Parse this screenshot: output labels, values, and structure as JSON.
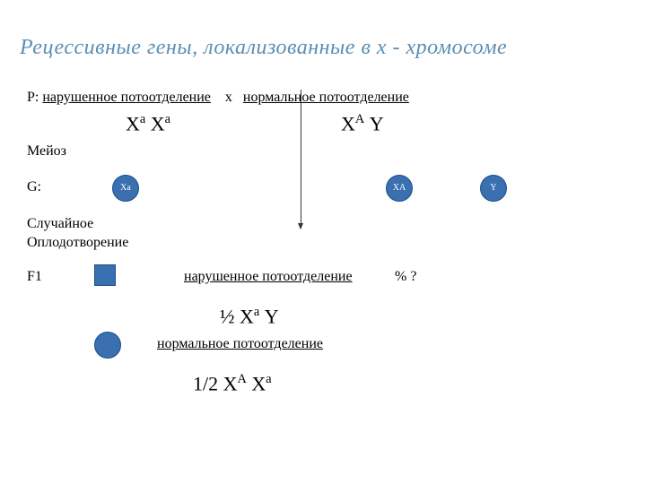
{
  "title": {
    "text": "Рецессивные  гены, локализованные в х - хромосоме",
    "color": "#5a8fb5"
  },
  "p_line": {
    "prefix": "P: ",
    "mother_pheno": "нарушенное потоотделение",
    "cross": "    х   ",
    "father_pheno": "нормальное потоотделение"
  },
  "genotypes": {
    "mother": {
      "base1": "Х",
      "sup1": "а",
      "base2": " Х",
      "sup2": "а"
    },
    "father": {
      "base1": "Х",
      "sup1": "А",
      "base2": " Y"
    }
  },
  "meiosis": "Мейоз",
  "g_label": "G:",
  "gametes": {
    "fill": "#3a6fb0",
    "stroke": "#1d4e89",
    "g1": "Ха",
    "g2": "ХА",
    "g3": "Y"
  },
  "random_fert": {
    "line1": "Случайное",
    "line2": "Оплодотворение"
  },
  "f1": {
    "label": "F1",
    "shape_fill": "#3a6fb0",
    "shape_stroke": "#1d4e89",
    "pheno": "нарушенное потоотделение",
    "percent": "% ?",
    "geno_prefix": "½  Х",
    "geno_sup": "а",
    "geno_suffix": " Y"
  },
  "f2": {
    "shape_fill": "#3a6fb0",
    "shape_stroke": "#1d4e89",
    "pheno": "нормальное потоотделение",
    "geno_prefix": "1/2 Х",
    "geno_sup1": "А",
    "geno_mid": " Х",
    "geno_sup2": "а"
  }
}
